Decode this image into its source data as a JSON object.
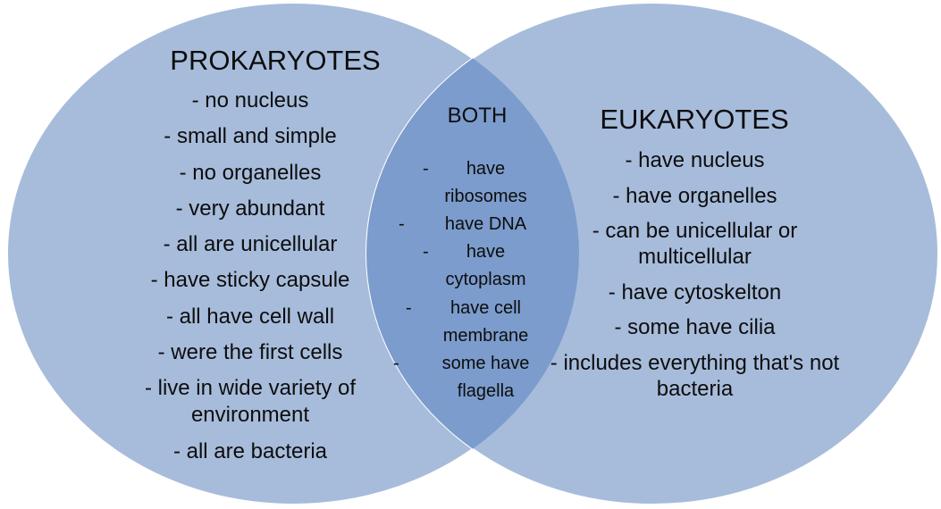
{
  "colors": {
    "circle_fill": "#a7bcdb",
    "overlap_fill": "#7b9ccc",
    "circle_stroke": "#ffffff"
  },
  "left": {
    "title": "PROKARYOTES",
    "items": [
      "- no nucleus",
      "- small and simple",
      "- no organelles",
      "- very abundant",
      "- all are unicellular",
      "- have sticky capsule",
      "- all have cell wall",
      "- were the first cells",
      "- live in wide variety of environment",
      "- all are bacteria"
    ]
  },
  "both": {
    "title": "BOTH",
    "items": [
      "have ribosomes",
      "have DNA",
      "have cytoplasm",
      "have cell membrane",
      "some have flagella"
    ],
    "bullet": "-"
  },
  "right": {
    "title": "EUKARYOTES",
    "items": [
      "- have nucleus",
      "- have organelles",
      "- can be unicellular or multicellular",
      "- have cytoskelton",
      "- some have cilia",
      "- includes everything that's not bacteria"
    ]
  }
}
